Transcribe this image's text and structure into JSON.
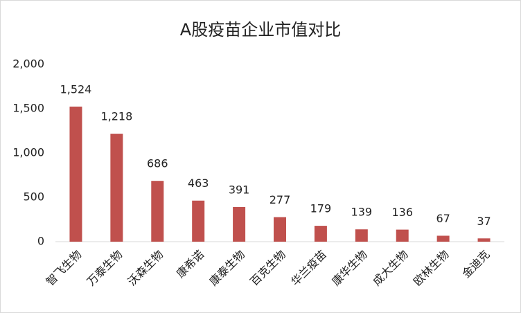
{
  "chart_data": {
    "type": "bar",
    "title": "A股疫苗企业市值对比",
    "categories": [
      "智飞生物",
      "万泰生物",
      "沃森生物",
      "康希诺",
      "康泰生物",
      "百克生物",
      "华兰疫苗",
      "康华生物",
      "成大生物",
      "欧林生物",
      "金迪克"
    ],
    "values": [
      1524,
      1218,
      686,
      463,
      391,
      277,
      179,
      139,
      136,
      67,
      37
    ],
    "value_labels": [
      "1,524",
      "1,218",
      "686",
      "463",
      "391",
      "277",
      "179",
      "139",
      "136",
      "67",
      "37"
    ],
    "color": "#c0504d",
    "ylim": [
      0,
      2000
    ],
    "yticks": [
      0,
      500,
      {
        "value": 1000,
        "label": "1,000"
      },
      {
        "value": 1500,
        "label": "1,500"
      },
      {
        "value": 2000,
        "label": "2,000"
      }
    ],
    "grid": false
  }
}
